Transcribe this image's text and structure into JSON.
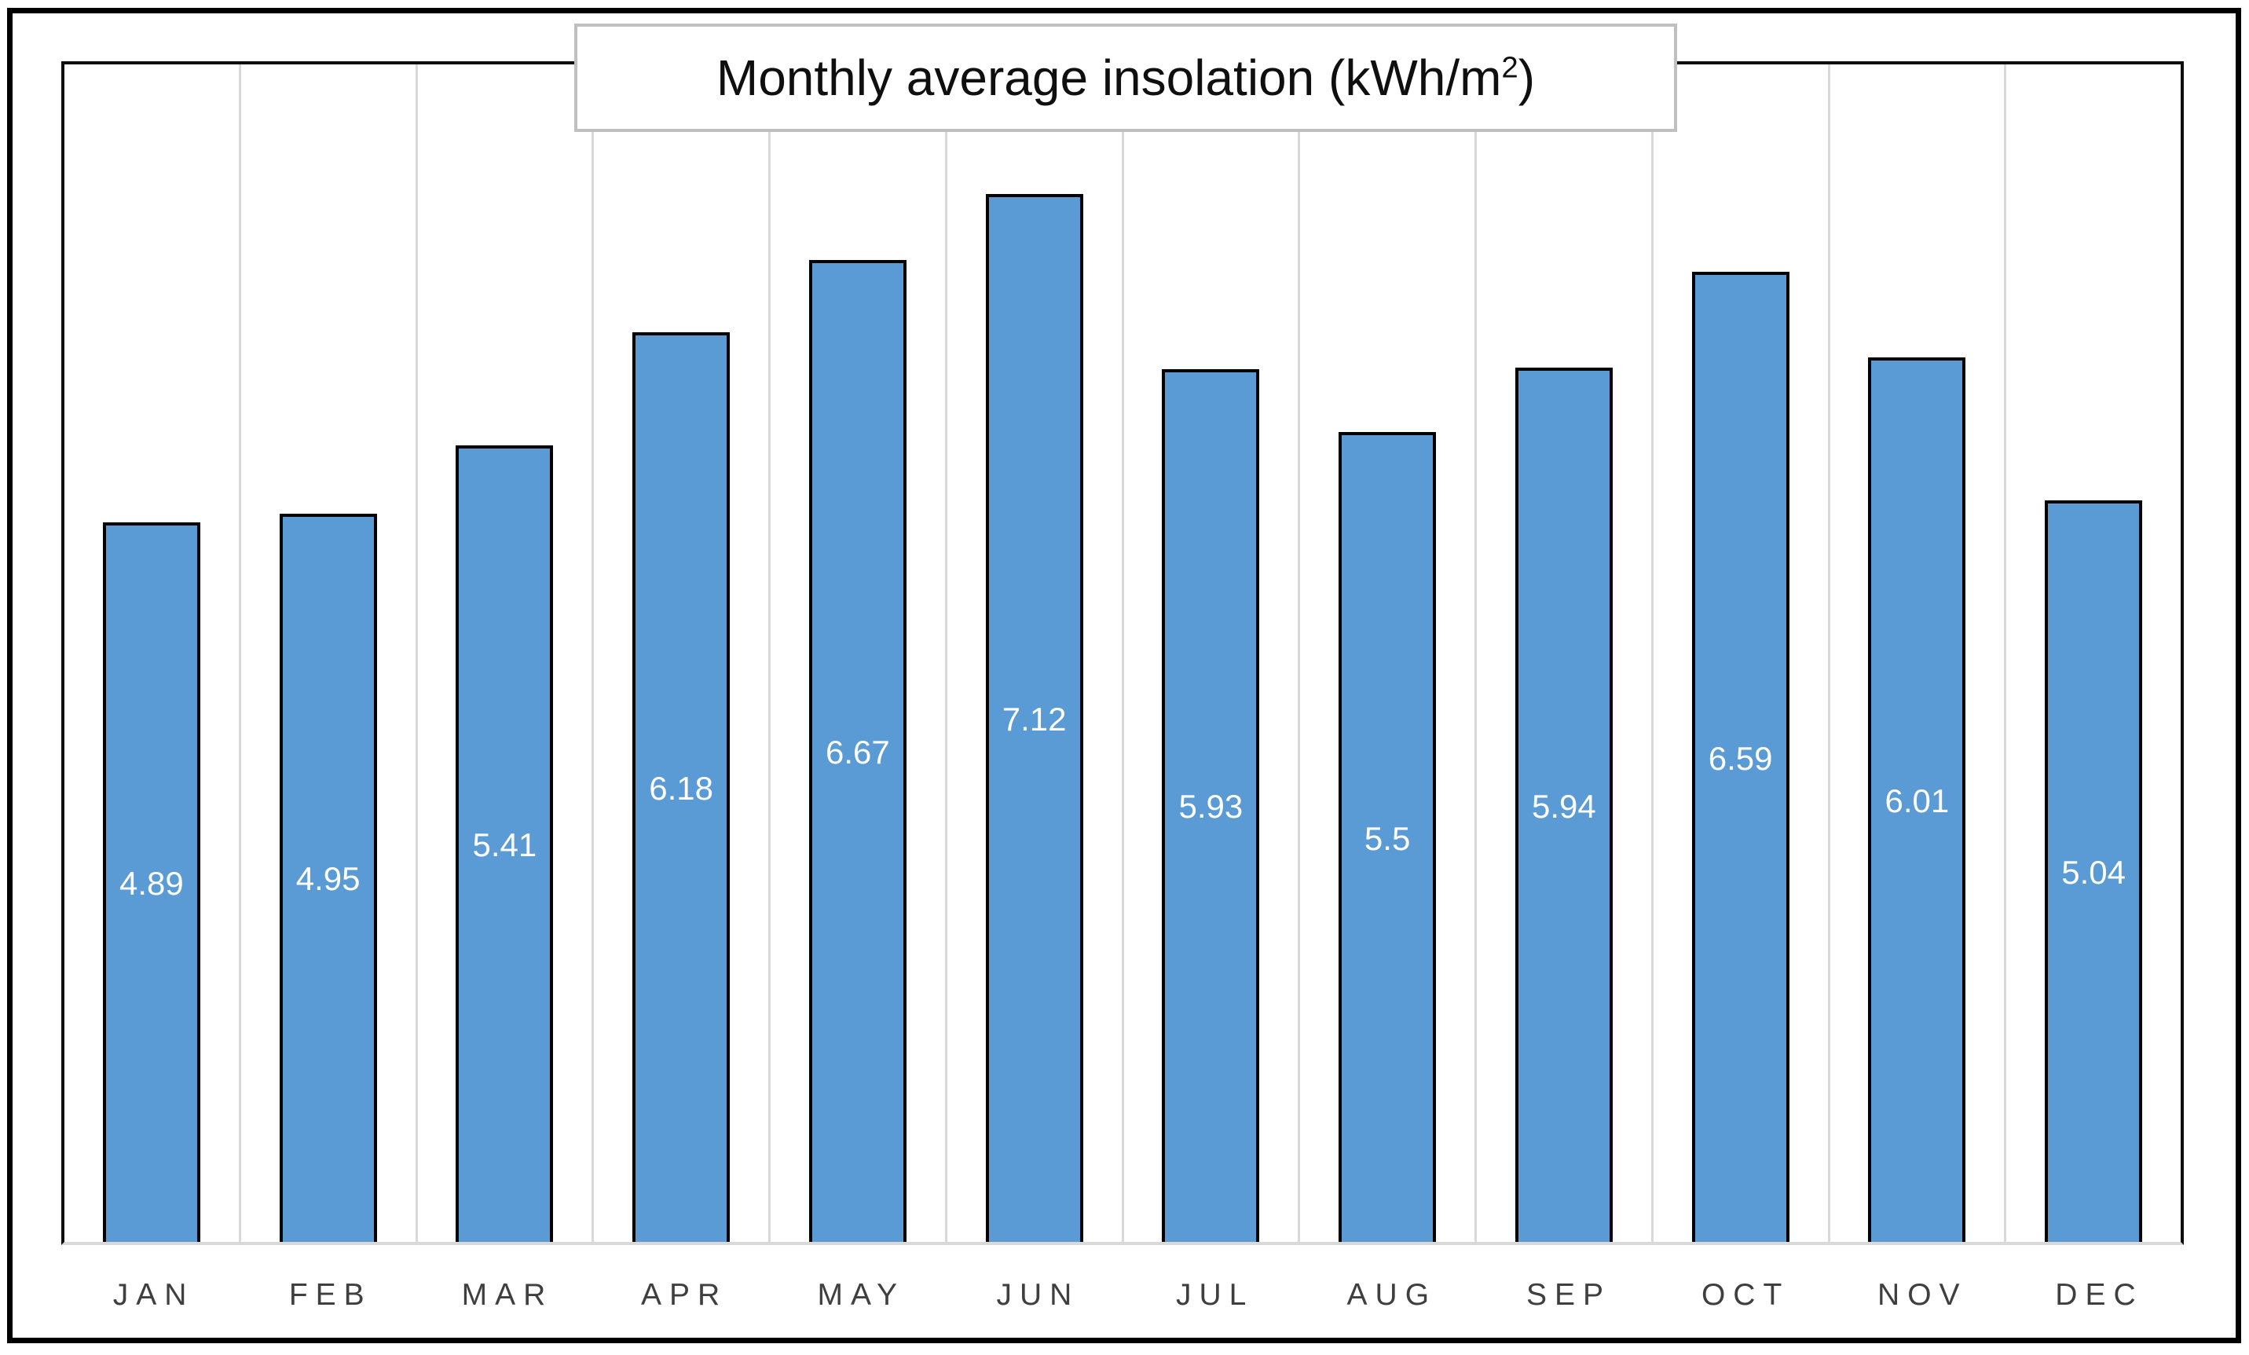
{
  "chart_data": {
    "type": "bar",
    "title": "Monthly average insolation (kWh/m²)",
    "title_parts": {
      "prefix": "Monthly average insolation (kWh/m",
      "superscript": "2",
      "suffix": ")"
    },
    "categories": [
      "JAN",
      "FEB",
      "MAR",
      "APR",
      "MAY",
      "JUN",
      "JUL",
      "AUG",
      "SEP",
      "OCT",
      "NOV",
      "DEC"
    ],
    "values": [
      4.89,
      4.95,
      5.41,
      6.18,
      6.67,
      7.12,
      5.93,
      5.5,
      5.94,
      6.59,
      6.01,
      5.04
    ],
    "value_labels": [
      "4.89",
      "4.95",
      "5.41",
      "6.18",
      "6.67",
      "7.12",
      "5.93",
      "5.5",
      "5.94",
      "6.59",
      "6.01",
      "5.04"
    ],
    "xlabel": "",
    "ylabel": "",
    "ylim": [
      0,
      8
    ],
    "grid": "vertical category-boundary gridlines only",
    "legend_position": "none",
    "colors": {
      "bar_fill": "#5b9bd5",
      "bar_border": "#000000",
      "gridline": "#d9d9d9",
      "axis_line": "#d9d9d9",
      "data_label": "#ffffff",
      "category_label": "#3f3f3f",
      "title_text": "#0f0f0f",
      "title_border": "#bfbfbf",
      "chart_frame": "#000000"
    }
  }
}
